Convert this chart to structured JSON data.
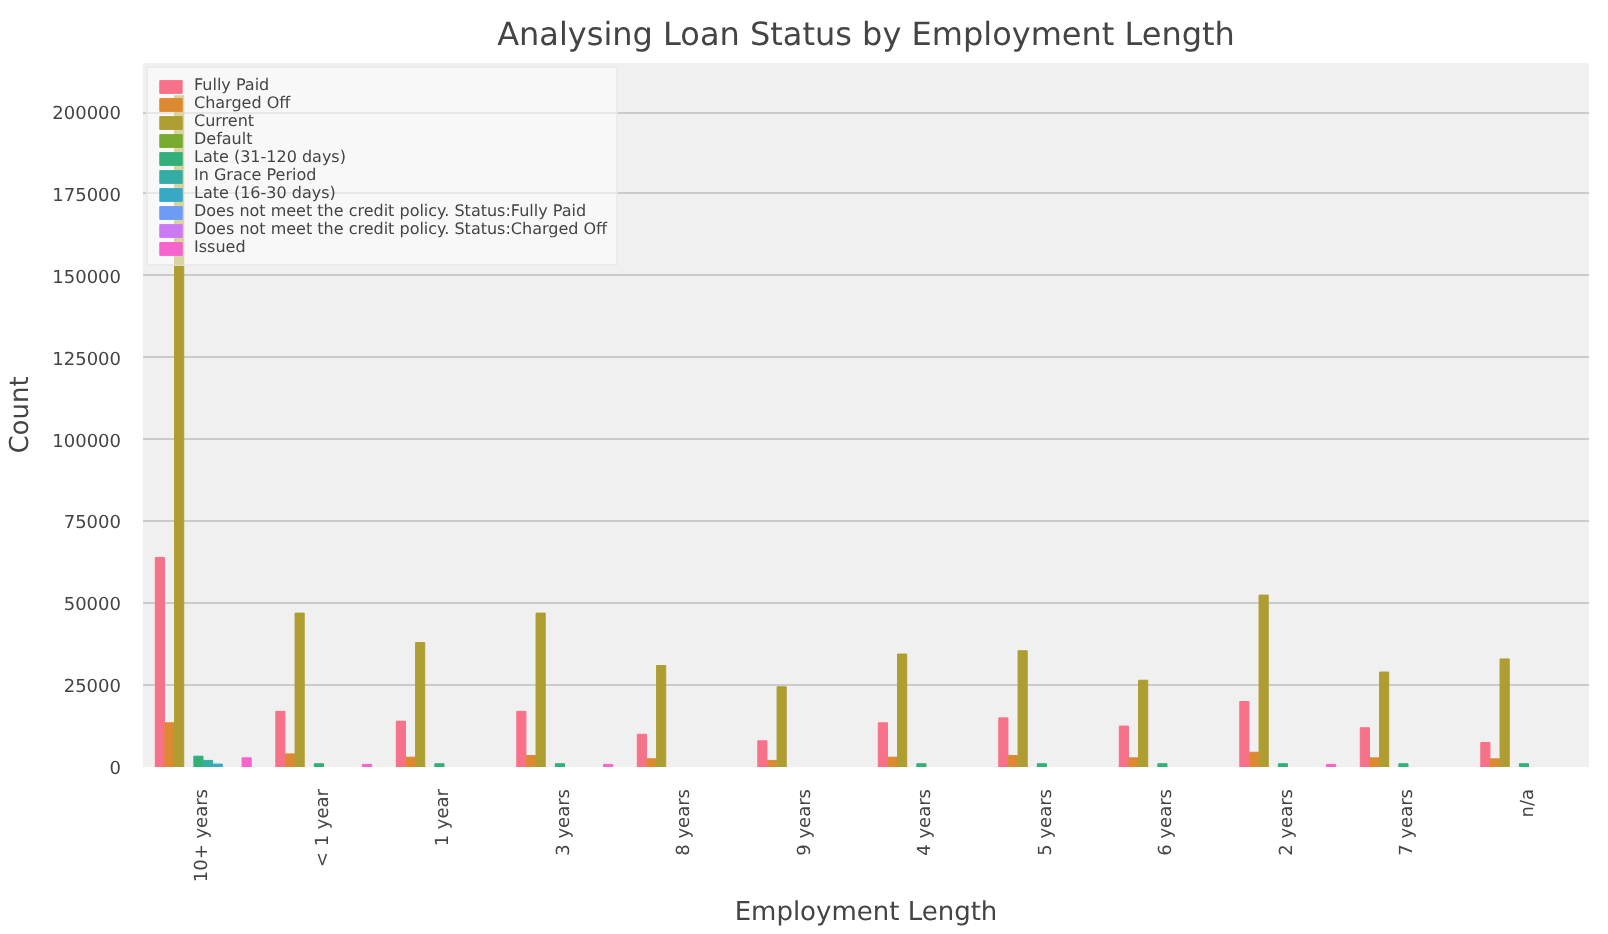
{
  "chart_data": {
    "type": "bar",
    "title": "Analysing Loan Status by Employment Length",
    "xlabel": "Employment Length",
    "ylabel": "Count",
    "categories": [
      "10+ years",
      "< 1 year",
      "1 year",
      "3 years",
      "8 years",
      "9 years",
      "4 years",
      "5 years",
      "6 years",
      "2 years",
      "7 years",
      "n/a"
    ],
    "series": [
      {
        "name": "Fully Paid",
        "color": "#f77189",
        "values": [
          64000,
          17000,
          14000,
          17000,
          10000,
          8000,
          13500,
          15000,
          12500,
          20000,
          12000,
          7500
        ]
      },
      {
        "name": "Charged Off",
        "color": "#dc8932",
        "values": [
          13500,
          4000,
          3000,
          3500,
          2500,
          2000,
          3000,
          3500,
          2800,
          4500,
          2800,
          2500
        ]
      },
      {
        "name": "Current",
        "color": "#ae9d31",
        "values": [
          205000,
          47000,
          38000,
          47000,
          31000,
          24500,
          34500,
          35500,
          26500,
          52500,
          29000,
          33000
        ]
      },
      {
        "name": "Default",
        "color": "#77ab31",
        "values": [
          null,
          null,
          null,
          null,
          null,
          null,
          null,
          null,
          null,
          null,
          null,
          null
        ]
      },
      {
        "name": "Late (31-120 days)",
        "color": "#33b07a",
        "values": [
          3300,
          1000,
          1000,
          1000,
          null,
          null,
          1000,
          1000,
          1000,
          1000,
          1000,
          1000
        ]
      },
      {
        "name": "In Grace Period",
        "color": "#36ada4",
        "values": [
          2000,
          null,
          null,
          null,
          null,
          null,
          null,
          null,
          null,
          null,
          null,
          null
        ]
      },
      {
        "name": "Late (16-30 days)",
        "color": "#38a9c5",
        "values": [
          900,
          null,
          null,
          null,
          null,
          null,
          null,
          null,
          null,
          null,
          null,
          null
        ]
      },
      {
        "name": "Does not meet the credit policy. Status:Fully Paid",
        "color": "#6e9bf4",
        "values": [
          null,
          null,
          null,
          null,
          null,
          null,
          null,
          null,
          null,
          null,
          null,
          null
        ]
      },
      {
        "name": "Does not meet the credit policy. Status:Charged Off",
        "color": "#cc7af4",
        "values": [
          null,
          null,
          null,
          null,
          null,
          null,
          null,
          null,
          null,
          null,
          null,
          null
        ]
      },
      {
        "name": "Issued",
        "color": "#f565cc",
        "values": [
          2800,
          800,
          null,
          800,
          null,
          null,
          null,
          null,
          null,
          800,
          null,
          null
        ]
      }
    ],
    "ylim": [
      0,
      215000
    ],
    "yticks": [
      0,
      25000,
      50000,
      75000,
      100000,
      125000,
      150000,
      175000,
      200000
    ],
    "grid": "y",
    "legend": "top left"
  }
}
